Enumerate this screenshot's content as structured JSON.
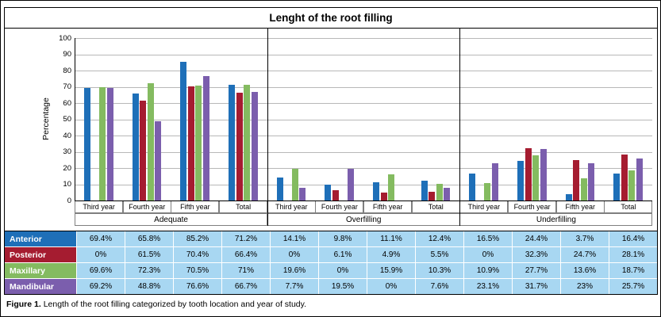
{
  "caption": {
    "label": "Figure 1.",
    "text": "Length of the root filling categorized by tooth location and year of study."
  },
  "chart_data": {
    "type": "bar",
    "title": "Lenght of the root filling",
    "ylabel": "Percentage",
    "ylim": [
      0,
      100
    ],
    "yticks": [
      0,
      10,
      20,
      30,
      40,
      50,
      60,
      70,
      80,
      90,
      100
    ],
    "grid": true,
    "legend_position": "table-row-headers",
    "panels": [
      "Adequate",
      "Overfilling",
      "Underfilling"
    ],
    "groups": [
      "Third year",
      "Fourth year",
      "Fifth year",
      "Total"
    ],
    "colors": {
      "table_cell_bg": "#a8d7f2",
      "gridline": "#b8b8b8"
    },
    "series": [
      {
        "name": "Anterior",
        "color": "#1e6fb8",
        "values": [
          69.4,
          65.8,
          85.2,
          71.2,
          14.1,
          9.8,
          11.1,
          12.4,
          16.5,
          24.4,
          3.7,
          16.4
        ],
        "cells": [
          "69.4%",
          "65.8%",
          "85.2%",
          "71.2%",
          "14.1%",
          "9.8%",
          "11.1%",
          "12.4%",
          "16.5%",
          "24.4%",
          "3.7%",
          "16.4%"
        ]
      },
      {
        "name": "Posterior",
        "color": "#a51c30",
        "values": [
          0,
          61.5,
          70.4,
          66.4,
          0,
          6.1,
          4.9,
          5.5,
          0,
          32.3,
          24.7,
          28.1
        ],
        "cells": [
          "0%",
          "61.5%",
          "70.4%",
          "66.4%",
          "0%",
          "6.1%",
          "4.9%",
          "5.5%",
          "0%",
          "32.3%",
          "24.7%",
          "28.1%"
        ]
      },
      {
        "name": "Maxillary",
        "color": "#84bb60",
        "values": [
          69.6,
          72.3,
          70.5,
          71,
          19.6,
          0,
          15.9,
          10.3,
          10.9,
          27.7,
          13.6,
          18.7
        ],
        "cells": [
          "69.6%",
          "72.3%",
          "70.5%",
          "71%",
          "19.6%",
          "0%",
          "15.9%",
          "10.3%",
          "10.9%",
          "27.7%",
          "13.6%",
          "18.7%"
        ]
      },
      {
        "name": "Mandibular",
        "color": "#7b5ead",
        "values": [
          69.2,
          48.8,
          76.6,
          66.7,
          7.7,
          19.5,
          0,
          7.6,
          23.1,
          31.7,
          23,
          25.7
        ],
        "cells": [
          "69.2%",
          "48.8%",
          "76.6%",
          "66.7%",
          "7.7%",
          "19.5%",
          "0%",
          "7.6%",
          "23.1%",
          "31.7%",
          "23%",
          "25.7%"
        ]
      }
    ]
  }
}
